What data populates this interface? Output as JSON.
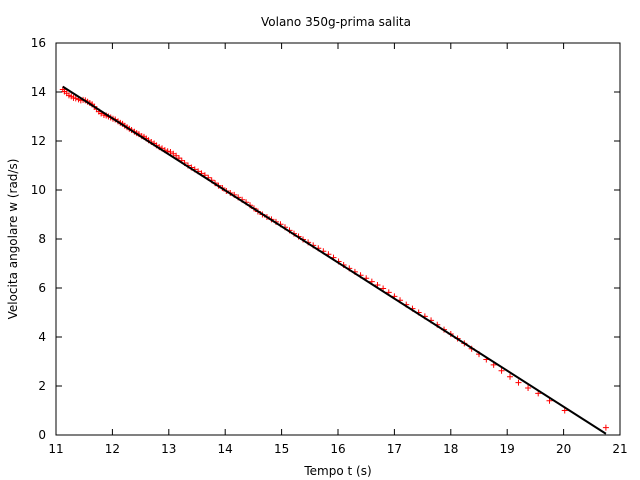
{
  "chart_data": {
    "type": "scatter",
    "title": "Volano 350g-prima salita",
    "xlabel": "Tempo t (s)",
    "ylabel": "Velocita angolare w (rad/s)",
    "xlim": [
      11,
      21
    ],
    "ylim": [
      0,
      16
    ],
    "xticks": [
      11,
      12,
      13,
      14,
      15,
      16,
      17,
      18,
      19,
      20,
      21
    ],
    "yticks": [
      0,
      2,
      4,
      6,
      8,
      10,
      12,
      14,
      16
    ],
    "grid": false,
    "legend": "none",
    "colors": {
      "points": "#ff0000",
      "fit_line": "#000000",
      "axes": "#000000"
    },
    "series": [
      {
        "marker": "plus",
        "points": [
          [
            11.12,
            14.1
          ],
          [
            11.15,
            14.02
          ],
          [
            11.19,
            13.95
          ],
          [
            11.23,
            13.86
          ],
          [
            11.27,
            13.82
          ],
          [
            11.31,
            13.76
          ],
          [
            11.35,
            13.74
          ],
          [
            11.4,
            13.7
          ],
          [
            11.44,
            13.66
          ],
          [
            11.48,
            13.68
          ],
          [
            11.52,
            13.66
          ],
          [
            11.56,
            13.6
          ],
          [
            11.6,
            13.55
          ],
          [
            11.64,
            13.5
          ],
          [
            11.68,
            13.4
          ],
          [
            11.72,
            13.3
          ],
          [
            11.76,
            13.2
          ],
          [
            11.8,
            13.12
          ],
          [
            11.85,
            13.06
          ],
          [
            11.89,
            13.04
          ],
          [
            11.93,
            13.0
          ],
          [
            11.97,
            12.96
          ],
          [
            12.01,
            12.91
          ],
          [
            12.05,
            12.88
          ],
          [
            12.1,
            12.8
          ],
          [
            12.14,
            12.74
          ],
          [
            12.18,
            12.7
          ],
          [
            12.22,
            12.62
          ],
          [
            12.26,
            12.56
          ],
          [
            12.3,
            12.5
          ],
          [
            12.34,
            12.45
          ],
          [
            12.39,
            12.38
          ],
          [
            12.43,
            12.32
          ],
          [
            12.47,
            12.28
          ],
          [
            12.52,
            12.2
          ],
          [
            12.56,
            12.17
          ],
          [
            12.6,
            12.1
          ],
          [
            12.64,
            12.03
          ],
          [
            12.69,
            11.96
          ],
          [
            12.74,
            11.9
          ],
          [
            12.78,
            11.82
          ],
          [
            12.83,
            11.75
          ],
          [
            12.88,
            11.7
          ],
          [
            12.93,
            11.63
          ],
          [
            12.98,
            11.58
          ],
          [
            13.03,
            11.55
          ],
          [
            13.08,
            11.48
          ],
          [
            13.13,
            11.4
          ],
          [
            13.18,
            11.3
          ],
          [
            13.23,
            11.2
          ],
          [
            13.28,
            11.1
          ],
          [
            13.34,
            11.0
          ],
          [
            13.4,
            10.92
          ],
          [
            13.46,
            10.84
          ],
          [
            13.52,
            10.76
          ],
          [
            13.58,
            10.68
          ],
          [
            13.64,
            10.6
          ],
          [
            13.7,
            10.5
          ],
          [
            13.76,
            10.4
          ],
          [
            13.82,
            10.28
          ],
          [
            13.88,
            10.18
          ],
          [
            13.95,
            10.08
          ],
          [
            14.02,
            9.96
          ],
          [
            14.09,
            9.88
          ],
          [
            14.16,
            9.8
          ],
          [
            14.23,
            9.7
          ],
          [
            14.3,
            9.6
          ],
          [
            14.37,
            9.5
          ],
          [
            14.44,
            9.38
          ],
          [
            14.51,
            9.25
          ],
          [
            14.58,
            9.12
          ],
          [
            14.66,
            9.0
          ],
          [
            14.74,
            8.9
          ],
          [
            14.82,
            8.8
          ],
          [
            14.9,
            8.7
          ],
          [
            14.98,
            8.6
          ],
          [
            15.06,
            8.48
          ],
          [
            15.14,
            8.35
          ],
          [
            15.22,
            8.22
          ],
          [
            15.3,
            8.1
          ],
          [
            15.38,
            7.98
          ],
          [
            15.47,
            7.86
          ],
          [
            15.56,
            7.74
          ],
          [
            15.65,
            7.62
          ],
          [
            15.74,
            7.5
          ],
          [
            15.83,
            7.38
          ],
          [
            15.92,
            7.24
          ],
          [
            16.01,
            7.08
          ],
          [
            16.1,
            6.94
          ],
          [
            16.2,
            6.8
          ],
          [
            16.3,
            6.66
          ],
          [
            16.4,
            6.52
          ],
          [
            16.5,
            6.4
          ],
          [
            16.6,
            6.26
          ],
          [
            16.7,
            6.12
          ],
          [
            16.8,
            5.98
          ],
          [
            16.9,
            5.82
          ],
          [
            17.0,
            5.66
          ],
          [
            17.1,
            5.5
          ],
          [
            17.21,
            5.32
          ],
          [
            17.32,
            5.16
          ],
          [
            17.43,
            5.0
          ],
          [
            17.54,
            4.84
          ],
          [
            17.65,
            4.68
          ],
          [
            17.76,
            4.5
          ],
          [
            17.88,
            4.3
          ],
          [
            18.0,
            4.12
          ],
          [
            18.12,
            3.94
          ],
          [
            18.24,
            3.74
          ],
          [
            18.37,
            3.52
          ],
          [
            18.5,
            3.3
          ],
          [
            18.63,
            3.08
          ],
          [
            18.76,
            2.86
          ],
          [
            18.9,
            2.62
          ],
          [
            19.05,
            2.38
          ],
          [
            19.2,
            2.14
          ],
          [
            19.37,
            1.92
          ],
          [
            19.55,
            1.7
          ],
          [
            19.75,
            1.4
          ],
          [
            20.02,
            1.0
          ],
          [
            20.75,
            0.3
          ]
        ]
      }
    ],
    "fit_line": {
      "x": [
        11.12,
        20.75
      ],
      "y": [
        14.22,
        0.05
      ]
    }
  }
}
